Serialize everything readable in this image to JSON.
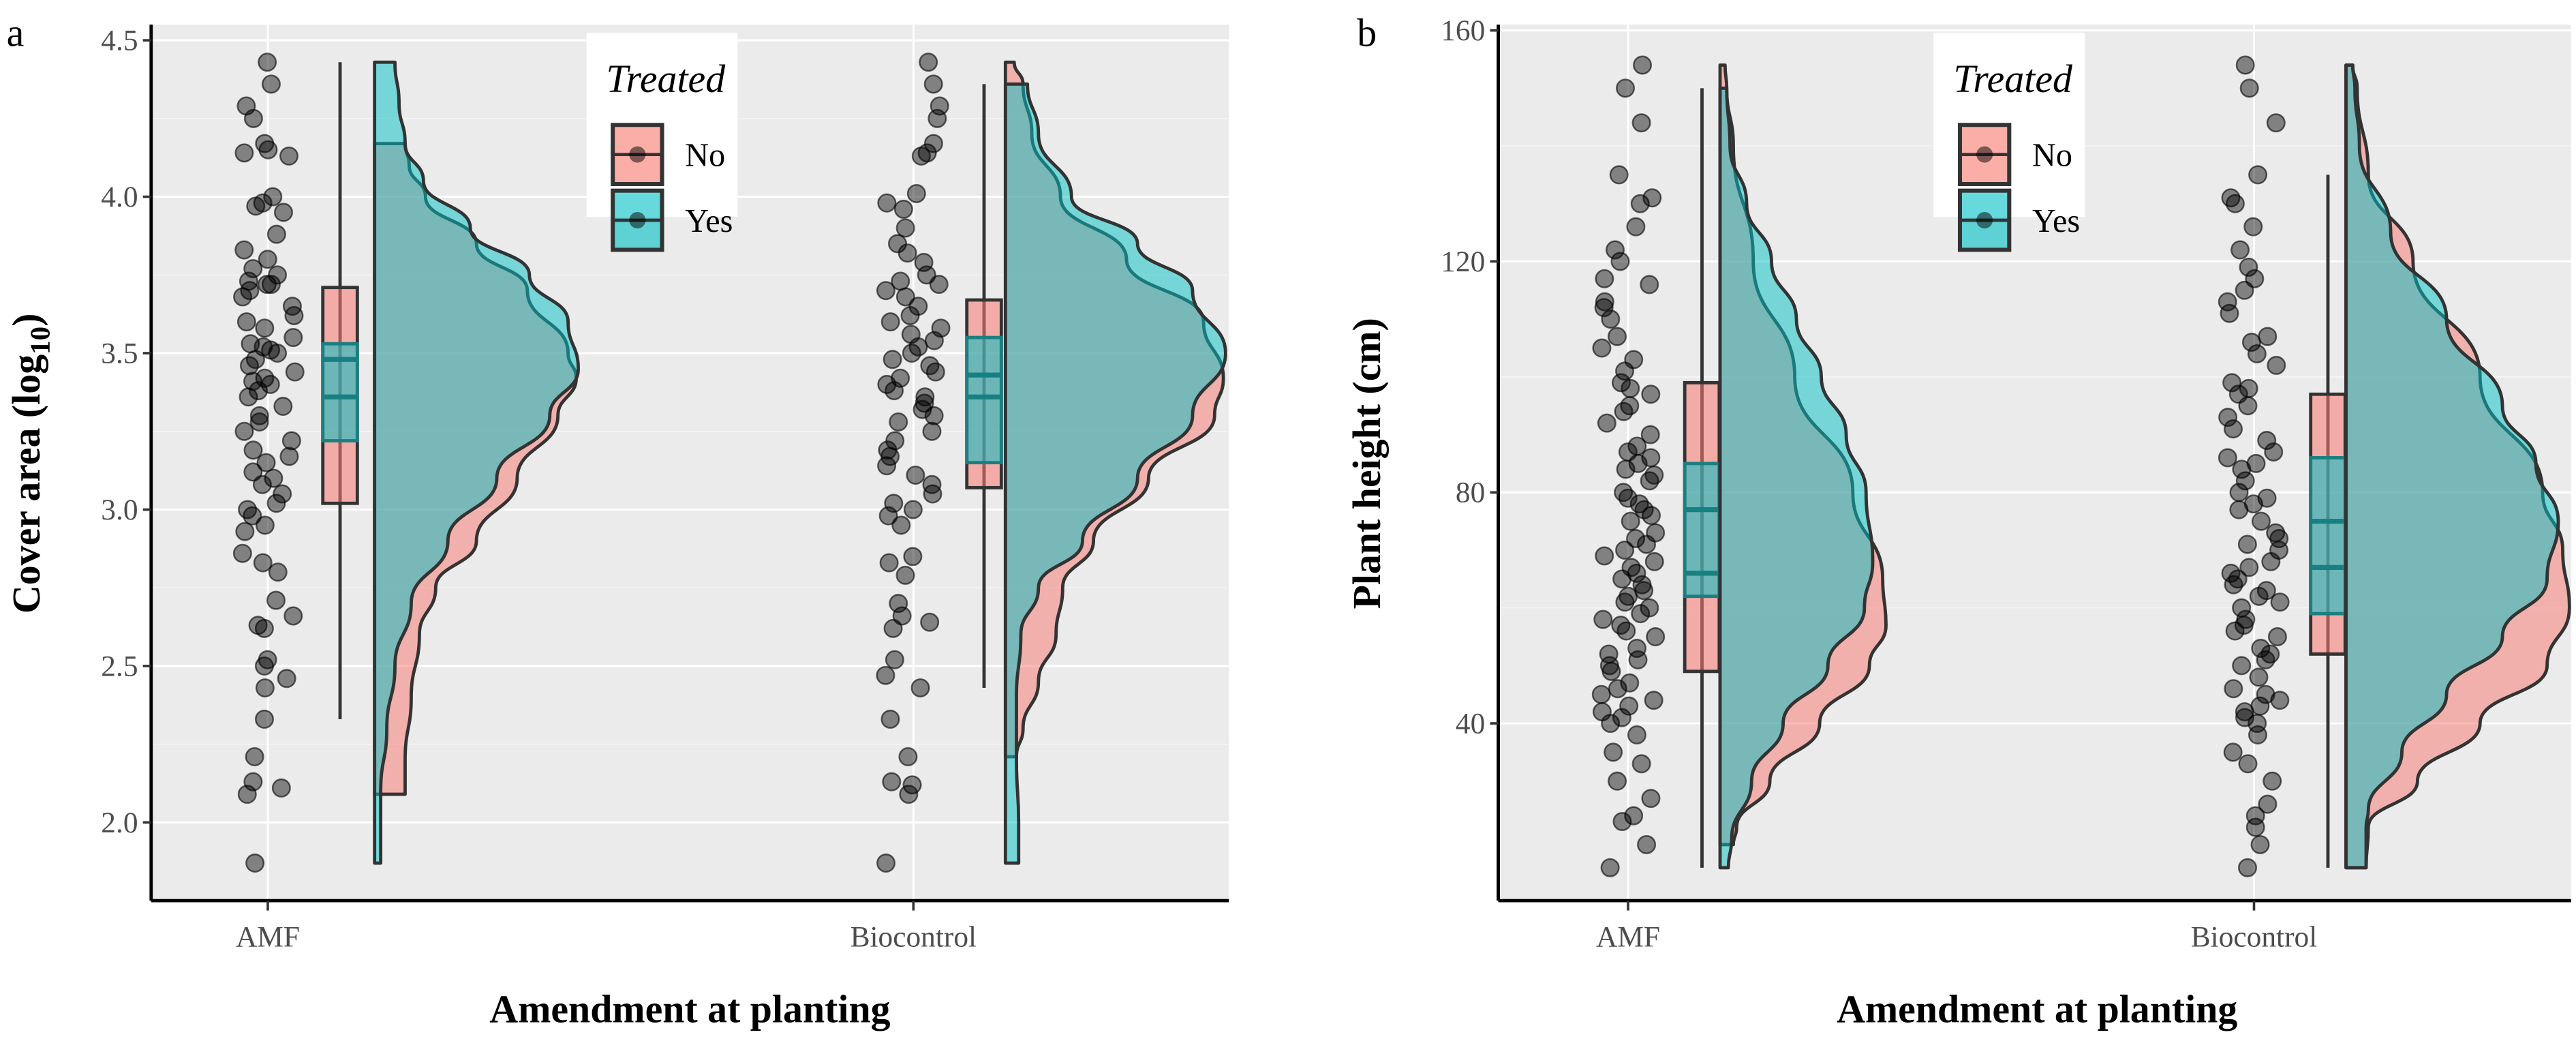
{
  "chart_data": [
    {
      "panel_label": "a",
      "type": "raincloud",
      "xlabel": "Amendment at planting",
      "ylabel_main": "Cover area (log",
      "ylabel_sub": "10",
      "ylabel_end": ")",
      "categories": [
        "AMF",
        "Biocontrol"
      ],
      "ylim": [
        1.75,
        4.55
      ],
      "yticks": [
        2.0,
        2.5,
        3.0,
        3.5,
        4.0,
        4.5
      ],
      "ytick_labels": [
        "2.0",
        "2.5",
        "3.0",
        "3.5",
        "4.0",
        "4.5"
      ],
      "grid": true,
      "legend": {
        "title": "Treated",
        "entries": [
          "No",
          "Yes"
        ],
        "placement": "top-center"
      },
      "colors": {
        "No": "#F8766D",
        "Yes": "#00BFC4",
        "points": "#000000",
        "panel": "#EBEBEB"
      },
      "points": {
        "AMF": [
          4.43,
          4.36,
          4.29,
          4.25,
          4.17,
          4.15,
          4.14,
          4.13,
          4.0,
          3.98,
          3.97,
          3.95,
          3.88,
          3.83,
          3.8,
          3.77,
          3.75,
          3.73,
          3.72,
          3.72,
          3.7,
          3.68,
          3.65,
          3.62,
          3.6,
          3.58,
          3.55,
          3.53,
          3.52,
          3.51,
          3.5,
          3.48,
          3.46,
          3.44,
          3.42,
          3.41,
          3.4,
          3.38,
          3.36,
          3.33,
          3.3,
          3.28,
          3.25,
          3.22,
          3.19,
          3.17,
          3.15,
          3.12,
          3.1,
          3.08,
          3.05,
          3.02,
          3.0,
          2.98,
          2.95,
          2.93,
          2.86,
          2.83,
          2.8,
          2.71,
          2.66,
          2.63,
          2.62,
          2.52,
          2.5,
          2.46,
          2.43,
          2.33,
          2.21,
          2.13,
          2.11,
          2.09,
          1.87
        ],
        "Biocontrol": [
          4.43,
          4.36,
          4.29,
          4.25,
          4.17,
          4.14,
          4.13,
          4.01,
          3.98,
          3.96,
          3.9,
          3.85,
          3.82,
          3.79,
          3.75,
          3.73,
          3.72,
          3.7,
          3.68,
          3.65,
          3.62,
          3.6,
          3.58,
          3.56,
          3.54,
          3.52,
          3.5,
          3.48,
          3.46,
          3.44,
          3.42,
          3.4,
          3.38,
          3.36,
          3.34,
          3.32,
          3.3,
          3.28,
          3.25,
          3.22,
          3.19,
          3.17,
          3.14,
          3.11,
          3.08,
          3.05,
          3.02,
          3.0,
          2.98,
          2.95,
          2.85,
          2.83,
          2.79,
          2.7,
          2.66,
          2.64,
          2.62,
          2.52,
          2.47,
          2.43,
          2.33,
          2.21,
          2.13,
          2.12,
          2.09,
          1.87
        ]
      },
      "boxplots": {
        "AMF": {
          "No": {
            "q1": 3.02,
            "median": 3.48,
            "q3": 3.71
          },
          "Yes": {
            "q1": 3.22,
            "median": 3.36,
            "q3": 3.53
          },
          "whisker_low": 2.33,
          "whisker_high": 4.43
        },
        "Biocontrol": {
          "No": {
            "q1": 3.07,
            "median": 3.43,
            "q3": 3.67
          },
          "Yes": {
            "q1": 3.15,
            "median": 3.36,
            "q3": 3.55
          },
          "whisker_low": 2.43,
          "whisker_high": 4.36
        }
      },
      "densities": {
        "AMF": {
          "Yes": [
            [
              4.43,
              0.1
            ],
            [
              4.3,
              0.12
            ],
            [
              4.17,
              0.15
            ],
            [
              4.05,
              0.24
            ],
            [
              3.9,
              0.47
            ],
            [
              3.75,
              0.76
            ],
            [
              3.6,
              0.95
            ],
            [
              3.45,
              1.0
            ],
            [
              3.3,
              0.86
            ],
            [
              3.1,
              0.6
            ],
            [
              2.9,
              0.36
            ],
            [
              2.7,
              0.18
            ],
            [
              2.5,
              0.1
            ],
            [
              2.3,
              0.06
            ],
            [
              2.1,
              0.03
            ],
            [
              1.95,
              0.03
            ],
            [
              1.87,
              0.03
            ]
          ],
          "No": [
            [
              4.17,
              0.15
            ],
            [
              4.1,
              0.17
            ],
            [
              4.0,
              0.25
            ],
            [
              3.85,
              0.5
            ],
            [
              3.7,
              0.75
            ],
            [
              3.5,
              0.95
            ],
            [
              3.42,
              0.99
            ],
            [
              3.3,
              0.9
            ],
            [
              3.1,
              0.7
            ],
            [
              2.9,
              0.5
            ],
            [
              2.75,
              0.3
            ],
            [
              2.6,
              0.22
            ],
            [
              2.4,
              0.18
            ],
            [
              2.2,
              0.15
            ],
            [
              2.09,
              0.15
            ]
          ]
        },
        "Biocontrol": {
          "Yes": [
            [
              4.36,
              0.1
            ],
            [
              4.2,
              0.15
            ],
            [
              4.0,
              0.3
            ],
            [
              3.85,
              0.6
            ],
            [
              3.7,
              0.85
            ],
            [
              3.5,
              1.0
            ],
            [
              3.3,
              0.85
            ],
            [
              3.1,
              0.6
            ],
            [
              2.9,
              0.35
            ],
            [
              2.75,
              0.15
            ],
            [
              2.6,
              0.07
            ],
            [
              2.4,
              0.05
            ],
            [
              2.2,
              0.05
            ],
            [
              2.0,
              0.06
            ],
            [
              1.87,
              0.06
            ]
          ],
          "No": [
            [
              4.43,
              0.04
            ],
            [
              4.36,
              0.08
            ],
            [
              4.2,
              0.12
            ],
            [
              4.0,
              0.25
            ],
            [
              3.8,
              0.55
            ],
            [
              3.6,
              0.9
            ],
            [
              3.42,
              0.99
            ],
            [
              3.3,
              0.95
            ],
            [
              3.1,
              0.65
            ],
            [
              2.9,
              0.4
            ],
            [
              2.75,
              0.26
            ],
            [
              2.6,
              0.23
            ],
            [
              2.45,
              0.15
            ],
            [
              2.3,
              0.08
            ],
            [
              2.21,
              0.05
            ]
          ]
        }
      }
    },
    {
      "panel_label": "b",
      "type": "raincloud",
      "xlabel": "Amendment at planting",
      "ylabel_main": "Plant height (cm)",
      "ylabel_sub": "",
      "ylabel_end": "",
      "categories": [
        "AMF",
        "Biocontrol"
      ],
      "ylim": [
        9.3,
        161
      ],
      "yticks": [
        40,
        80,
        120,
        160
      ],
      "ytick_labels": [
        "40",
        "80",
        "120",
        "160"
      ],
      "grid": true,
      "legend": {
        "title": "Treated",
        "entries": [
          "No",
          "Yes"
        ],
        "placement": "top-center"
      },
      "colors": {
        "No": "#F8766D",
        "Yes": "#00BFC4",
        "points": "#000000",
        "panel": "#EBEBEB"
      },
      "points": {
        "AMF": [
          154,
          150,
          144,
          135,
          131,
          130,
          126,
          122,
          120,
          117,
          116,
          113,
          112,
          110,
          107,
          105,
          103,
          101,
          99,
          98,
          97,
          95,
          94,
          92,
          90,
          88,
          87,
          86,
          85,
          84,
          83,
          82,
          80,
          79,
          78,
          77,
          76,
          75,
          73,
          72,
          71,
          70,
          69,
          68,
          67,
          66,
          65,
          64,
          63,
          62,
          61,
          60,
          59,
          58,
          57,
          56,
          55,
          53,
          52,
          51,
          50,
          49,
          47,
          46,
          45,
          44,
          43,
          42,
          41,
          40,
          38,
          35,
          33,
          30,
          27,
          24,
          23,
          19,
          15
        ],
        "Biocontrol": [
          154,
          150,
          144,
          135,
          131,
          130,
          126,
          122,
          119,
          117,
          115,
          113,
          111,
          107,
          106,
          104,
          102,
          99,
          98,
          97,
          95,
          93,
          91,
          89,
          87,
          86,
          85,
          84,
          82,
          80,
          79,
          78,
          77,
          75,
          73,
          72,
          71,
          70,
          68,
          67,
          66,
          65,
          64,
          63,
          62,
          61,
          60,
          58,
          57,
          56,
          55,
          53,
          52,
          51,
          50,
          48,
          46,
          45,
          44,
          43,
          42,
          41,
          40,
          38,
          35,
          33,
          30,
          26,
          24,
          22,
          19,
          15
        ]
      },
      "boxplots": {
        "AMF": {
          "No": {
            "q1": 49,
            "median": 77,
            "q3": 99
          },
          "Yes": {
            "q1": 62,
            "median": 66,
            "q3": 85
          },
          "whisker_low": 15,
          "whisker_high": 150
        },
        "Biocontrol": {
          "No": {
            "q1": 52,
            "median": 75,
            "q3": 97
          },
          "Yes": {
            "q1": 59,
            "median": 67,
            "q3": 86
          },
          "whisker_low": 15,
          "whisker_high": 135
        }
      },
      "densities": {
        "AMF": {
          "Yes": [
            [
              150,
              0.04
            ],
            [
              140,
              0.06
            ],
            [
              130,
              0.16
            ],
            [
              120,
              0.31
            ],
            [
              110,
              0.46
            ],
            [
              100,
              0.61
            ],
            [
              90,
              0.76
            ],
            [
              80,
              0.88
            ],
            [
              68,
              0.92
            ],
            [
              60,
              0.87
            ],
            [
              50,
              0.65
            ],
            [
              40,
              0.38
            ],
            [
              30,
              0.19
            ],
            [
              20,
              0.07
            ],
            [
              15,
              0.05
            ]
          ],
          "No": [
            [
              154,
              0.03
            ],
            [
              150,
              0.04
            ],
            [
              140,
              0.08
            ],
            [
              120,
              0.2
            ],
            [
              100,
              0.45
            ],
            [
              80,
              0.8
            ],
            [
              65,
              0.98
            ],
            [
              57,
              1.0
            ],
            [
              50,
              0.9
            ],
            [
              40,
              0.6
            ],
            [
              30,
              0.3
            ],
            [
              22,
              0.1
            ],
            [
              19,
              0.08
            ]
          ]
        },
        "Biocontrol": {
          "Yes": [
            [
              154,
              0.03
            ],
            [
              150,
              0.04
            ],
            [
              140,
              0.06
            ],
            [
              125,
              0.2
            ],
            [
              110,
              0.45
            ],
            [
              95,
              0.7
            ],
            [
              85,
              0.85
            ],
            [
              75,
              0.95
            ],
            [
              65,
              0.9
            ],
            [
              55,
              0.7
            ],
            [
              45,
              0.45
            ],
            [
              35,
              0.25
            ],
            [
              25,
              0.1
            ],
            [
              22,
              0.09
            ],
            [
              15,
              0.09
            ]
          ],
          "No": [
            [
              154,
              0.03
            ],
            [
              150,
              0.05
            ],
            [
              135,
              0.1
            ],
            [
              120,
              0.3
            ],
            [
              100,
              0.6
            ],
            [
              80,
              0.88
            ],
            [
              70,
              0.97
            ],
            [
              60,
              1.0
            ],
            [
              50,
              0.9
            ],
            [
              40,
              0.6
            ],
            [
              30,
              0.32
            ],
            [
              22,
              0.1
            ],
            [
              15,
              0.09
            ]
          ]
        }
      }
    }
  ]
}
